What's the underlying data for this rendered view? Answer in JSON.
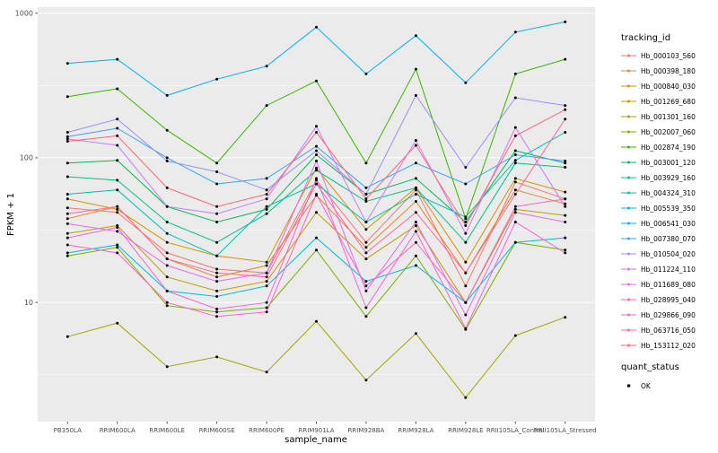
{
  "style": {
    "panel_bg": "#EBEBEB",
    "grid_major": "#FFFFFF",
    "grid_minor": "#F7F7F7",
    "tick_color": "#4D4D4D",
    "point_color": "#000000",
    "background": "#FFFFFF"
  },
  "chart_data": {
    "type": "line",
    "title": "",
    "xlabel": "sample_name",
    "ylabel": "FPKM + 1",
    "y_scale": "log10",
    "grid": true,
    "y_ticks": [
      10,
      100,
      1000
    ],
    "ylim": [
      1.5,
      1100
    ],
    "legend": {
      "title": "tracking_id",
      "position": "right"
    },
    "quant_status": {
      "title": "quant_status",
      "items": [
        {
          "label": "OK",
          "marker": "point",
          "color": "#000000"
        }
      ]
    },
    "categories": [
      "PB350LA",
      "RRIM600LA",
      "RRIM600LE",
      "RRIM600SE",
      "RRIM600PE",
      "RRIM901LA",
      "RRIM928BA",
      "RRIM928LA",
      "RRIM928LE",
      "RRII105LA_Control",
      "RRII105LA_Stressed"
    ],
    "series": [
      {
        "name": "Hb_000103_560",
        "color": "#F8766D",
        "values": [
          45,
          42,
          22,
          17,
          16,
          70,
          26,
          60,
          13,
          68,
          52
        ]
      },
      {
        "name": "Hb_000398_180",
        "color": "#E88526",
        "values": [
          38,
          46,
          20,
          15,
          18,
          55,
          24,
          50,
          16,
          60,
          48
        ]
      },
      {
        "name": "Hb_000840_030",
        "color": "#D89000",
        "values": [
          52,
          44,
          26,
          21,
          19,
          85,
          32,
          62,
          19,
          72,
          58
        ]
      },
      {
        "name": "Hb_001269_680",
        "color": "#C09B00",
        "values": [
          30,
          34,
          15,
          12,
          14,
          42,
          20,
          34,
          10,
          44,
          40
        ]
      },
      {
        "name": "Hb_001301_160",
        "color": "#A3A500",
        "values": [
          5.8,
          7.2,
          3.6,
          4.2,
          3.3,
          7.4,
          2.9,
          6.1,
          2.2,
          5.9,
          7.9
        ]
      },
      {
        "name": "Hb_002007_060",
        "color": "#7CAE00",
        "values": [
          21,
          24,
          9.5,
          8.6,
          9.2,
          23,
          8,
          21,
          6.5,
          26,
          23
        ]
      },
      {
        "name": "Hb_002874_190",
        "color": "#39B600",
        "values": [
          265,
          300,
          155,
          92,
          230,
          340,
          92,
          410,
          38,
          380,
          480
        ]
      },
      {
        "name": "Hb_003001_120",
        "color": "#00BB4E",
        "values": [
          92,
          96,
          46,
          36,
          44,
          105,
          56,
          72,
          36,
          112,
          92
        ]
      },
      {
        "name": "Hb_003929_160",
        "color": "#00C087",
        "values": [
          74,
          70,
          36,
          26,
          41,
          82,
          50,
          62,
          26,
          92,
          86
        ]
      },
      {
        "name": "Hb_004324_310",
        "color": "#00C0AF",
        "values": [
          56,
          60,
          30,
          21,
          46,
          66,
          36,
          56,
          39,
          96,
          150
        ]
      },
      {
        "name": "Hb_005539_350",
        "color": "#00BCD8",
        "values": [
          22,
          25,
          12,
          11,
          13,
          28,
          14,
          18,
          10,
          26,
          28
        ]
      },
      {
        "name": "Hb_006541_030",
        "color": "#00B0F6",
        "values": [
          450,
          480,
          270,
          350,
          430,
          800,
          380,
          700,
          330,
          740,
          870
        ]
      },
      {
        "name": "Hb_007380_070",
        "color": "#35A2FF",
        "values": [
          140,
          160,
          100,
          66,
          72,
          120,
          62,
          92,
          66,
          105,
          95
        ]
      },
      {
        "name": "Hb_010504_020",
        "color": "#9590FF",
        "values": [
          150,
          185,
          95,
          80,
          60,
          112,
          56,
          270,
          86,
          260,
          230
        ]
      },
      {
        "name": "Hb_011224_110",
        "color": "#C77CFF",
        "values": [
          135,
          122,
          46,
          41,
          52,
          165,
          36,
          132,
          30,
          162,
          46
        ]
      },
      {
        "name": "Hb_011689_080",
        "color": "#E76BF3",
        "values": [
          35,
          31,
          18,
          14,
          16,
          95,
          12,
          36,
          8.2,
          42,
          36
        ]
      },
      {
        "name": "Hb_028995_040",
        "color": "#FA62DB",
        "values": [
          28,
          33,
          12,
          9,
          10,
          72,
          9.2,
          31,
          6.6,
          36,
          22
        ]
      },
      {
        "name": "Hb_029866_090",
        "color": "#FF61C7",
        "values": [
          25,
          22,
          10,
          8,
          8.6,
          56,
          13,
          26,
          10,
          46,
          52
        ]
      },
      {
        "name": "Hb_063716_050",
        "color": "#FF689E",
        "values": [
          41,
          46,
          20,
          16,
          15,
          66,
          22,
          42,
          16,
          56,
          185
        ]
      },
      {
        "name": "Hb_153112_020",
        "color": "#FF6774",
        "values": [
          130,
          142,
          62,
          46,
          56,
          150,
          52,
          122,
          34,
          142,
          215
        ]
      }
    ]
  }
}
